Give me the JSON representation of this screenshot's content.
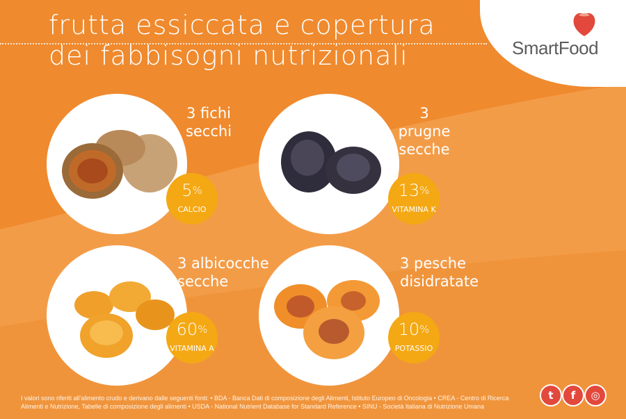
{
  "title": {
    "line1": "frutta essiccata e copertura",
    "line2": "dei fabbisogni nutrizionali"
  },
  "logo": {
    "brand": "SmartFood",
    "icon": "strawberry-icon"
  },
  "items": [
    {
      "label_line1": "3 fichi",
      "label_line2": "secchi",
      "percent": "5",
      "unit": "%",
      "nutrient": "CALCIO",
      "image": "dried-figs"
    },
    {
      "label_line1": "3 prugne",
      "label_line2": "secche",
      "percent": "13",
      "unit": "%",
      "nutrient": "VITAMINA K",
      "image": "prunes"
    },
    {
      "label_line1": "3 albicocche",
      "label_line2": "secche",
      "percent": "60",
      "unit": "%",
      "nutrient": "VITAMINA A",
      "image": "dried-apricots"
    },
    {
      "label_line1": "3 pesche",
      "label_line2": "disidratate",
      "percent": "10",
      "unit": "%",
      "nutrient": "POTASSIO",
      "image": "dried-peaches"
    }
  ],
  "footnote": {
    "line1": "I valori sono riferiti all'alimento crudo e derivano dalle seguenti fonti: • BDA - Banca Dati di composizione degli Alimenti, Istituto Europeo di Oncologia • CREA - Centro di Ricerca",
    "line2": "Alimenti e Nutrizione, Tabelle di composizione degli alimenti • USDA - National Nutrient Database for Standard Reference • SINU - Società Italiana di Nutrizione Umana"
  },
  "social": [
    {
      "icon": "twitter-icon",
      "glyph": "t"
    },
    {
      "icon": "facebook-icon",
      "glyph": "f"
    },
    {
      "icon": "instagram-icon",
      "glyph": "◎"
    }
  ],
  "colors": {
    "background": "#ef8a2e",
    "badge": "#f4a814",
    "social": "#e2483c",
    "accent_light": "#f6a24f"
  }
}
